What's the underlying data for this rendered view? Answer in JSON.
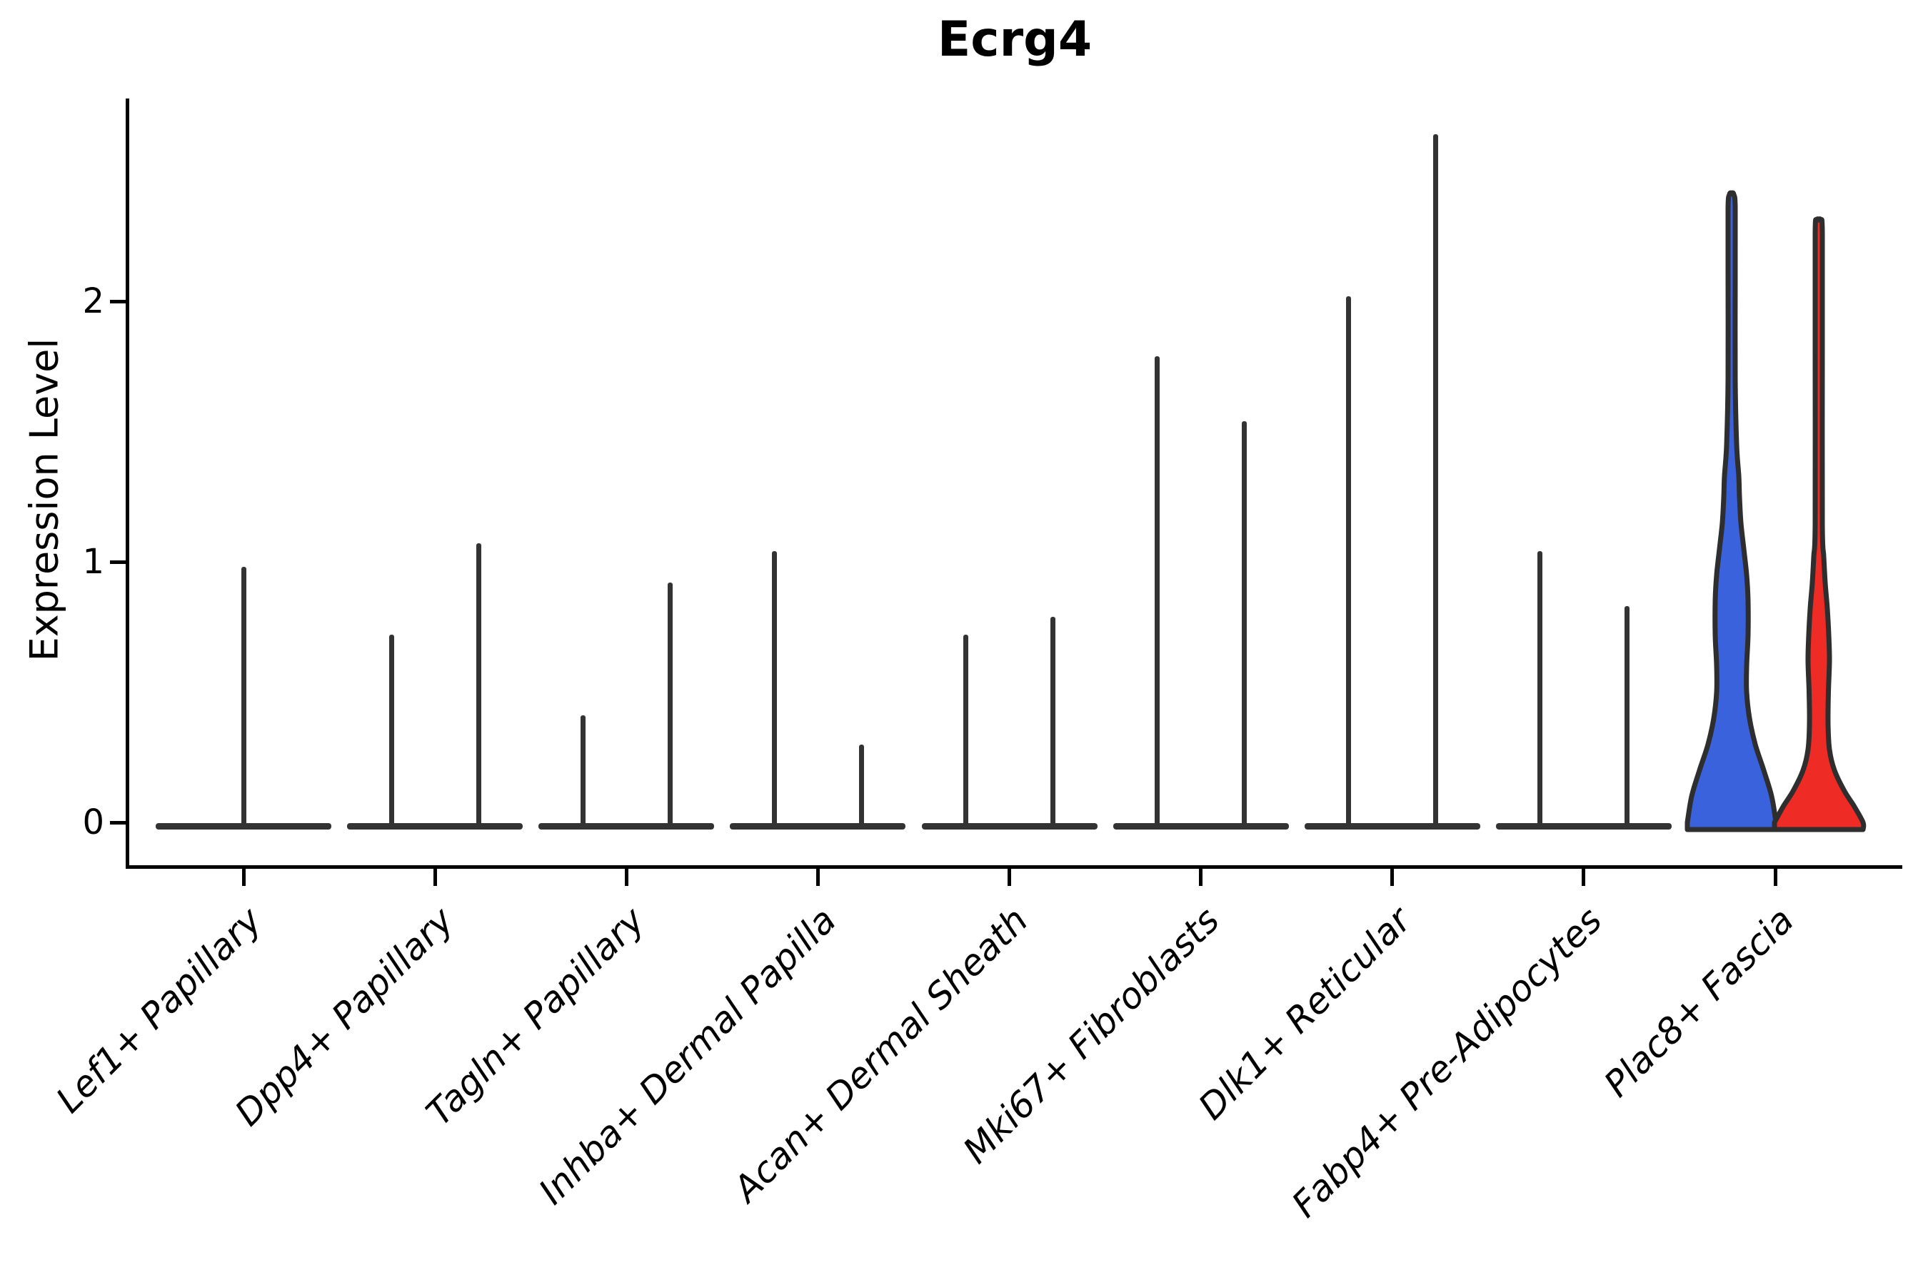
{
  "title": "Ecrg4",
  "chart_data": {
    "type": "violin",
    "title": "Ecrg4",
    "xlabel": "",
    "ylabel": "Expression Level",
    "yticks": [
      0,
      1,
      2
    ],
    "ylim": [
      -0.06,
      2.77
    ],
    "grid": false,
    "legend_position": "none",
    "outline_color": "#2E2E2E",
    "spike_color": "#333333",
    "split_colors": {
      "group1": "#3A62DD",
      "group2": "#EE2B24"
    },
    "categories": [
      "Lef1+ Papillary",
      "Dpp4+ Papillary",
      "Tagln+ Papillary",
      "Inhba+ Dermal Papilla",
      "Acan+ Dermal Sheath",
      "Mki67+ Fibroblasts",
      "Dlk1+ Reticular",
      "Fabp4+ Pre-Adipocytes",
      "Plac8+ Fascia"
    ],
    "groups": [
      {
        "category": "Lef1+ Papillary",
        "violins": [
          {
            "name": "single",
            "peak": 0.98,
            "style": "flat-spike",
            "width": "double",
            "fill": null
          }
        ]
      },
      {
        "category": "Dpp4+ Papillary",
        "violins": [
          {
            "name": "left",
            "peak": 0.72,
            "style": "flat-spike",
            "fill": null
          },
          {
            "name": "right",
            "peak": 1.07,
            "style": "flat-spike",
            "fill": null
          }
        ]
      },
      {
        "category": "Tagln+ Papillary",
        "violins": [
          {
            "name": "left",
            "peak": 0.41,
            "style": "flat-spike",
            "fill": null
          },
          {
            "name": "right",
            "peak": 0.92,
            "style": "flat-spike",
            "fill": null
          }
        ]
      },
      {
        "category": "Inhba+ Dermal Papilla",
        "violins": [
          {
            "name": "left",
            "peak": 1.04,
            "style": "flat-spike",
            "fill": null
          },
          {
            "name": "right",
            "peak": 0.3,
            "style": "flat-spike",
            "fill": null
          }
        ]
      },
      {
        "category": "Acan+ Dermal Sheath",
        "violins": [
          {
            "name": "left",
            "peak": 0.72,
            "style": "flat-spike",
            "fill": null
          },
          {
            "name": "right",
            "peak": 0.79,
            "style": "flat-spike",
            "fill": null
          }
        ]
      },
      {
        "category": "Mki67+ Fibroblasts",
        "violins": [
          {
            "name": "left",
            "peak": 1.79,
            "style": "flat-spike",
            "fill": null
          },
          {
            "name": "right",
            "peak": 1.54,
            "style": "flat-spike",
            "fill": null
          }
        ]
      },
      {
        "category": "Dlk1+ Reticular",
        "violins": [
          {
            "name": "left",
            "peak": 2.02,
            "style": "flat-spike",
            "fill": null
          },
          {
            "name": "right",
            "peak": 2.64,
            "style": "flat-spike",
            "fill": null
          }
        ]
      },
      {
        "category": "Fabp4+ Pre-Adipocytes",
        "violins": [
          {
            "name": "left",
            "peak": 1.04,
            "style": "flat-spike",
            "fill": null
          },
          {
            "name": "right",
            "peak": 0.83,
            "style": "flat-spike",
            "fill": null
          }
        ]
      },
      {
        "category": "Plac8+ Fascia",
        "violins": [
          {
            "name": "left",
            "peak": 2.41,
            "style": "shaped",
            "fill": "#3A62DD",
            "profile": [
              [
                0,
                62
              ],
              [
                0.1,
                56
              ],
              [
                0.2,
                45
              ],
              [
                0.3,
                33
              ],
              [
                0.4,
                25
              ],
              [
                0.5,
                21
              ],
              [
                0.6,
                21
              ],
              [
                0.72,
                23
              ],
              [
                0.85,
                23
              ],
              [
                0.95,
                21
              ],
              [
                1.05,
                17
              ],
              [
                1.15,
                13
              ],
              [
                1.25,
                11
              ],
              [
                1.33,
                10
              ],
              [
                1.45,
                7
              ],
              [
                1.7,
                5
              ],
              [
                2.1,
                5
              ],
              [
                2.36,
                5
              ],
              [
                2.41,
                3
              ]
            ]
          },
          {
            "name": "right",
            "peak": 2.31,
            "style": "shaped",
            "fill": "#EE2B24",
            "profile": [
              [
                0,
                62
              ],
              [
                0.06,
                50
              ],
              [
                0.12,
                36
              ],
              [
                0.2,
                22
              ],
              [
                0.28,
                15
              ],
              [
                0.38,
                13
              ],
              [
                0.5,
                13.5
              ],
              [
                0.62,
                15
              ],
              [
                0.72,
                14
              ],
              [
                0.82,
                12
              ],
              [
                0.92,
                9
              ],
              [
                1.02,
                7
              ],
              [
                1.15,
                5
              ],
              [
                1.8,
                5
              ],
              [
                2.26,
                5
              ],
              [
                2.31,
                3
              ]
            ]
          }
        ]
      }
    ]
  }
}
